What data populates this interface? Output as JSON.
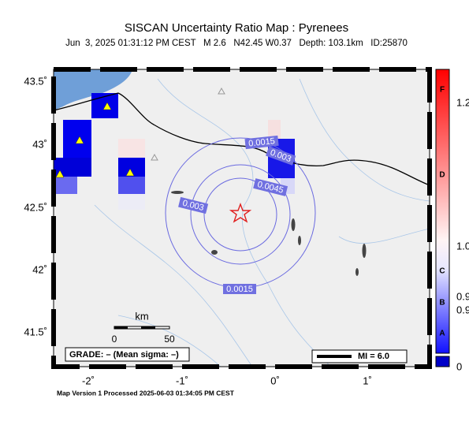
{
  "header": {
    "title": "SISCAN Uncertainty Ratio Map : Pyrenees",
    "subtitle": "Jun  3, 2025 01:31:12 PM CEST   M 2.6   N42.45 W0.37   Depth: 103.1km   ID:25870"
  },
  "map": {
    "lon_ticks": [
      "-2˚",
      "-1˚",
      "0˚",
      "1˚"
    ],
    "lat_ticks": [
      "43.5˚",
      "43˚",
      "42.5˚",
      "42˚",
      "41.5˚"
    ],
    "contour_labels": [
      "0.0015",
      "0.003",
      "0.0045",
      "0.003",
      "0.0015"
    ],
    "scale": {
      "unit": "km",
      "start": "0",
      "end": "50"
    },
    "grade_box": "GRADE: – (Mean sigma: –)",
    "mi_box": "MI = 6.0"
  },
  "colorbar": {
    "grades": [
      "F",
      "D",
      "C",
      "B",
      "A"
    ],
    "labels": [
      "1.2",
      "1.0",
      "0.9",
      "0.9",
      "0"
    ]
  },
  "footer": "Map Version 1 Processed 2025-06-03 01:34:05 PM CEST"
}
